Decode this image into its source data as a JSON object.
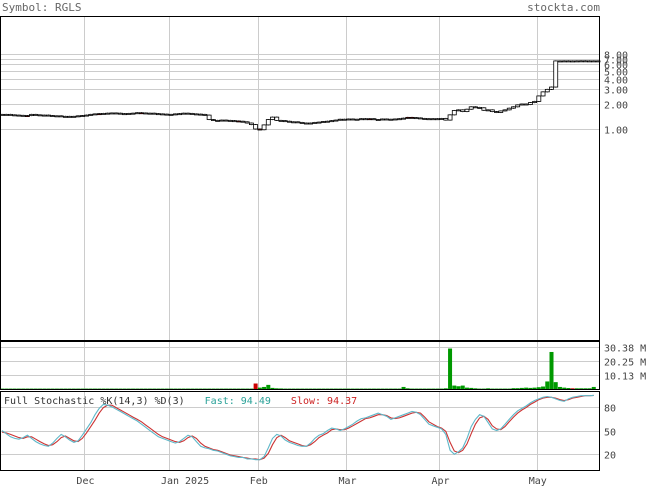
{
  "header": {
    "symbol_prefix": "Symbol: ",
    "symbol": "RGLS",
    "site": "stockta.com"
  },
  "stochastic": {
    "title": "Full Stochastic %K(14,3) %D(3)",
    "fast_label": "Fast: ",
    "fast_value": "94.49",
    "slow_label": "Slow: ",
    "slow_value": "94.37",
    "ticks": [
      "80",
      "50",
      "20"
    ]
  },
  "volume": {
    "ticks": [
      "30.38 M",
      "20.25 M",
      "10.13 M"
    ]
  },
  "price": {
    "ticks": [
      "1.00",
      "2.00",
      "3.00",
      "4.00",
      "5.00",
      "6.00",
      "7.00",
      "8.00"
    ]
  },
  "x_labels": [
    "Dec",
    "Jan 2025",
    "Feb",
    "Mar",
    "Apr",
    "May"
  ],
  "colors": {
    "up": "#ffffff",
    "down": "#cc0000",
    "volume_up": "#009900",
    "volume_down": "#cc0000",
    "fast_line": "#5fb8c9",
    "slow_line": "#cc3333",
    "grid": "#cccccc",
    "frame": "#000000"
  },
  "chart_data": [
    {
      "type": "candlestick",
      "title": "",
      "scale": "log",
      "ylim": [
        0.5,
        8.5
      ],
      "y_ticks": [
        1,
        2,
        3,
        4,
        5,
        6,
        7,
        8
      ],
      "x_ticks": [
        "Dec",
        "Jan 2025",
        "Feb",
        "Mar",
        "Apr",
        "May"
      ],
      "grid": true,
      "series": [
        {
          "values": [
            1.5,
            1.5,
            1.48,
            1.47,
            1.46,
            1.44,
            1.45,
            1.5,
            1.48,
            1.46,
            1.47,
            1.45,
            1.43,
            1.44,
            1.42,
            1.4,
            1.42,
            1.41,
            1.44,
            1.45,
            1.47,
            1.5,
            1.52,
            1.53,
            1.54,
            1.55,
            1.56,
            1.55,
            1.53,
            1.52,
            1.54,
            1.55,
            1.57,
            1.56,
            1.54,
            1.55,
            1.53,
            1.52,
            1.51,
            1.5,
            1.49,
            1.52,
            1.53,
            1.55,
            1.54,
            1.52,
            1.51,
            1.5,
            1.47,
            1.3,
            1.27,
            1.27,
            1.28,
            1.27,
            1.26,
            1.25,
            1.24,
            1.22,
            1.18,
            1.13,
            1.0,
            0.98,
            1.12,
            1.3,
            1.39,
            1.27,
            1.26,
            1.24,
            1.22,
            1.22,
            1.2,
            1.18,
            1.16,
            1.18,
            1.2,
            1.21,
            1.23,
            1.24,
            1.26,
            1.28,
            1.31,
            1.3,
            1.32,
            1.3,
            1.31,
            1.33,
            1.32,
            1.33,
            1.3,
            1.3,
            1.32,
            1.31,
            1.3,
            1.32,
            1.33,
            1.35,
            1.38,
            1.37,
            1.36,
            1.34,
            1.32,
            1.33,
            1.32,
            1.33,
            1.34,
            1.28,
            1.48,
            1.67,
            1.7,
            1.62,
            1.73,
            1.85,
            1.82,
            1.8,
            1.68,
            1.7,
            1.62,
            1.58,
            1.65,
            1.7,
            1.78,
            1.85,
            1.95,
            2.0,
            1.97,
            2.08,
            2.15,
            2.5,
            2.8,
            3.0,
            3.2,
            6.6,
            6.6,
            6.61,
            6.6,
            6.6,
            6.61,
            6.62,
            6.61,
            6.6,
            6.61,
            6.6
          ],
          "down_days": [
            6,
            23,
            33,
            56,
            61,
            87,
            96,
            97
          ]
        }
      ]
    },
    {
      "type": "bar",
      "title": "",
      "y_ticks": [
        10.13,
        20.25,
        30.38
      ],
      "ylabel": "M",
      "ylim": [
        0,
        35
      ],
      "series": [
        {
          "values": [
            0.3,
            0.3,
            0.3,
            0.3,
            0.3,
            0.3,
            0.3,
            0.3,
            0.3,
            0.3,
            0.3,
            0.3,
            0.3,
            0.3,
            0.3,
            0.3,
            0.3,
            0.3,
            0.3,
            0.3,
            0.3,
            0.3,
            0.3,
            0.3,
            0.3,
            0.3,
            0.3,
            0.3,
            0.3,
            0.3,
            0.3,
            0.3,
            0.3,
            0.3,
            0.3,
            0.3,
            0.3,
            0.3,
            0.3,
            0.3,
            0.3,
            0.3,
            0.3,
            0.3,
            0.3,
            0.3,
            0.3,
            0.3,
            0.3,
            0.3,
            0.3,
            0.3,
            0.3,
            0.3,
            0.3,
            0.3,
            0.3,
            0.3,
            0.3,
            0.3,
            4.0,
            1.0,
            1.5,
            3.0,
            0.8,
            0.5,
            0.4,
            0.3,
            0.3,
            0.3,
            0.3,
            0.3,
            0.3,
            0.3,
            0.3,
            0.3,
            0.3,
            0.3,
            0.3,
            0.3,
            0.3,
            0.3,
            0.3,
            0.3,
            0.3,
            0.3,
            0.3,
            0.3,
            0.3,
            0.3,
            0.3,
            0.3,
            0.3,
            0.3,
            0.3,
            1.5,
            0.5,
            0.3,
            0.3,
            0.3,
            0.3,
            0.3,
            0.3,
            0.3,
            0.3,
            0.5,
            29.5,
            2.5,
            2.0,
            2.5,
            1.0,
            0.8,
            0.5,
            0.3,
            0.3,
            0.5,
            0.3,
            0.3,
            0.3,
            0.3,
            0.3,
            0.6,
            0.6,
            0.8,
            1.0,
            0.8,
            1.0,
            1.3,
            1.8,
            5.5,
            27.0,
            5.0,
            1.5,
            1.0,
            0.7,
            0.5,
            0.5,
            0.5,
            0.5,
            0.5,
            1.5
          ],
          "down_days": [
            60,
            135
          ]
        }
      ]
    },
    {
      "type": "line",
      "title": "Full Stochastic %K(14,3) %D(3)",
      "ylim": [
        0,
        100
      ],
      "y_ticks": [
        20,
        50,
        80
      ],
      "series": [
        {
          "name": "Fast",
          "values": [
            50,
            46,
            42,
            40,
            39,
            41,
            44,
            40,
            36,
            33,
            31,
            30,
            34,
            40,
            45,
            42,
            38,
            35,
            37,
            44,
            52,
            60,
            70,
            78,
            83,
            82,
            80,
            77,
            74,
            71,
            68,
            65,
            62,
            58,
            54,
            50,
            46,
            42,
            40,
            38,
            36,
            34,
            36,
            40,
            44,
            42,
            36,
            30,
            28,
            27,
            25,
            24,
            22,
            20,
            18,
            17,
            16,
            16,
            14,
            14,
            13,
            13,
            17,
            28,
            40,
            45,
            43,
            38,
            35,
            33,
            31,
            30,
            30,
            34,
            40,
            44,
            46,
            50,
            53,
            52,
            50,
            52,
            55,
            58,
            62,
            65,
            66,
            68,
            70,
            72,
            70,
            68,
            64,
            66,
            68,
            70,
            72,
            74,
            73,
            70,
            64,
            58,
            56,
            54,
            52,
            45,
            25,
            20,
            23,
            28,
            40,
            55,
            64,
            70,
            68,
            60,
            52,
            50,
            52,
            58,
            64,
            70,
            75,
            78,
            81,
            85,
            88,
            90,
            92,
            93,
            92,
            90,
            88,
            87,
            90,
            92,
            93,
            94,
            94,
            94,
            94.49
          ]
        },
        {
          "name": "Slow",
          "values": [
            48,
            47,
            45,
            43,
            41,
            40,
            42,
            42,
            39,
            36,
            33,
            31,
            32,
            36,
            41,
            43,
            40,
            37,
            36,
            40,
            47,
            55,
            63,
            72,
            79,
            82,
            82,
            79,
            76,
            73,
            70,
            67,
            64,
            61,
            57,
            53,
            49,
            45,
            42,
            40,
            38,
            36,
            35,
            37,
            41,
            43,
            40,
            34,
            30,
            28,
            26,
            25,
            23,
            21,
            19,
            18,
            17,
            16,
            15,
            14,
            14,
            13,
            15,
            21,
            32,
            41,
            44,
            41,
            37,
            35,
            33,
            31,
            30,
            32,
            36,
            41,
            44,
            47,
            51,
            52,
            51,
            51,
            53,
            56,
            59,
            62,
            65,
            66,
            68,
            70,
            70,
            69,
            66,
            65,
            66,
            68,
            70,
            72,
            73,
            72,
            67,
            61,
            58,
            55,
            53,
            49,
            35,
            24,
            22,
            25,
            33,
            46,
            58,
            66,
            68,
            64,
            56,
            52,
            51,
            55,
            61,
            67,
            72,
            76,
            79,
            83,
            86,
            89,
            91,
            92,
            92,
            91,
            89,
            88,
            89,
            91,
            92,
            93,
            94,
            94,
            94.37
          ]
        }
      ]
    }
  ]
}
